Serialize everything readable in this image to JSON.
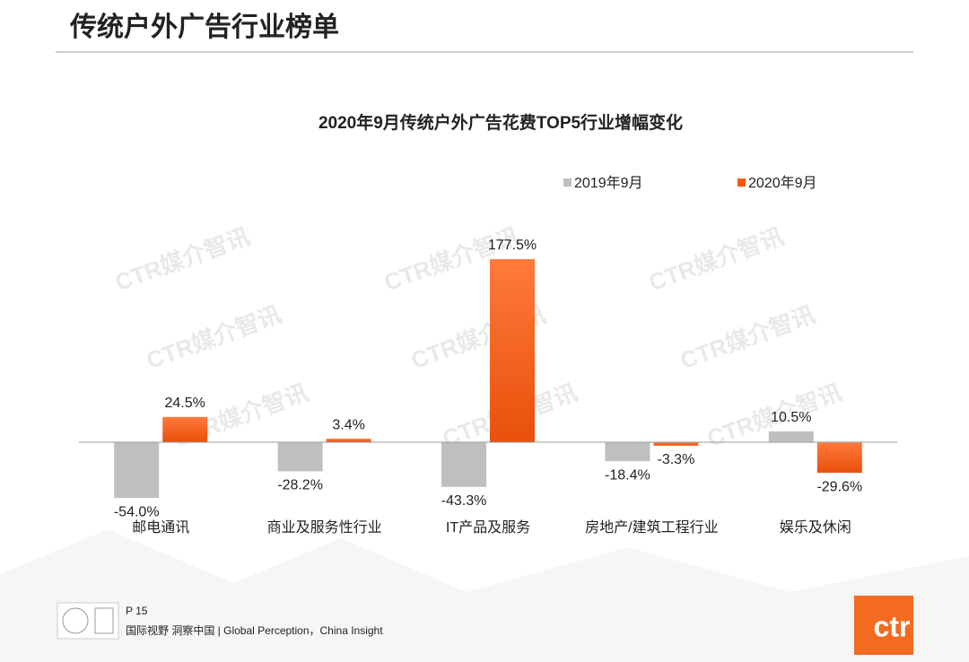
{
  "header": {
    "title": "传统户外广告行业榜单"
  },
  "watermark": "CTR媒介智讯",
  "chart_data": {
    "type": "bar",
    "title": "2020年9月传统户外广告花费TOP5行业增幅变化",
    "categories": [
      "邮电通讯",
      "商业及服务性行业",
      "IT产品及服务",
      "房地产/建筑工程行业",
      "娱乐及休闲"
    ],
    "series": [
      {
        "name": "2019年9月",
        "color": "#bfbfbf",
        "values": [
          -54.0,
          -28.2,
          -43.3,
          -18.4,
          10.5
        ],
        "value_labels": [
          "-54.0%",
          "-28.2%",
          "-43.3%",
          "-18.4%",
          "10.5%"
        ]
      },
      {
        "name": "2020年9月",
        "color": "#f05a14",
        "values": [
          24.5,
          3.4,
          177.5,
          -3.3,
          -29.6
        ],
        "value_labels": [
          "24.5%",
          "3.4%",
          "177.5%",
          "-3.3%",
          "-29.6%"
        ]
      }
    ]
  },
  "footer": {
    "page": "P 15",
    "slogan": "国际视野  洞察中国 |  Global Perception，China Insight",
    "logo": "ctr"
  }
}
